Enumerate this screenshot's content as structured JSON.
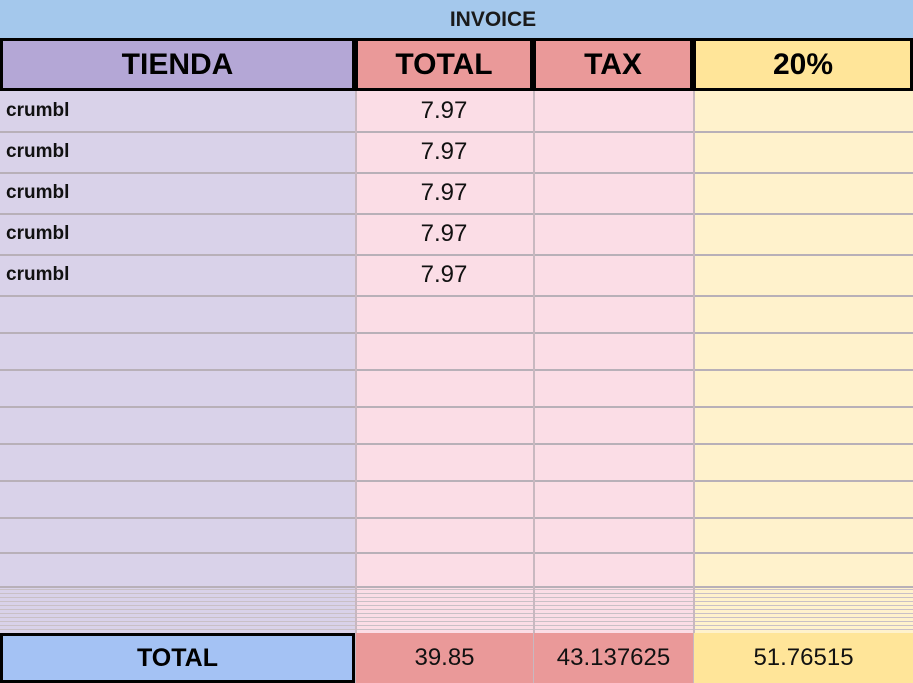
{
  "sheet": {
    "title": "INVOICE",
    "header": [
      "TIENDA",
      "TOTAL",
      "TAX",
      "20%"
    ],
    "rows": [
      [
        "crumbl",
        7.97
      ],
      [
        "crumbl",
        7.97
      ],
      [
        "crumbl",
        7.97
      ],
      [
        "crumbl",
        7.97
      ],
      [
        "crumbl",
        7.97
      ]
    ],
    "totals": {
      "label": "TOTAL",
      "values": [
        39.85,
        43.137625,
        51.76515
      ]
    }
  }
}
